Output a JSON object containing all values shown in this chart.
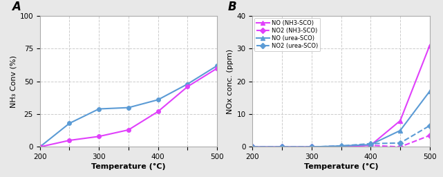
{
  "panel_A": {
    "label": "A",
    "urea_SCO": {
      "x": [
        200,
        250,
        300,
        350,
        400,
        450,
        500
      ],
      "y": [
        0,
        18,
        29,
        30,
        36,
        48,
        62
      ],
      "color": "#5b9bd5",
      "marker": "o",
      "markersize": 4,
      "label": "urea-SCO"
    },
    "NH3_SCO": {
      "x": [
        200,
        250,
        300,
        350,
        400,
        450,
        500
      ],
      "y": [
        0,
        5,
        8,
        13,
        27,
        46,
        60
      ],
      "color": "#e040fb",
      "marker": "o",
      "markersize": 4,
      "label": "NH3-SCO"
    },
    "xlabel": "Temperature (°C)",
    "ylabel": "NH₃ Conv (%)",
    "xlim": [
      200,
      500
    ],
    "ylim": [
      0,
      100
    ],
    "yticks": [
      0,
      25,
      50,
      75,
      100
    ],
    "xtick_labels": [
      "200",
      "",
      "300",
      "",
      "400",
      "",
      "500"
    ]
  },
  "panel_B": {
    "label": "B",
    "NO_NH3": {
      "x": [
        200,
        250,
        300,
        350,
        400,
        450,
        500
      ],
      "y": [
        0,
        0,
        0,
        0,
        0.5,
        8,
        31
      ],
      "color": "#e040fb",
      "marker": "^",
      "markersize": 5,
      "linestyle": "-",
      "label": "NO (NH3-SCO)"
    },
    "NO2_NH3": {
      "x": [
        200,
        250,
        300,
        350,
        400,
        450,
        500
      ],
      "y": [
        0,
        0,
        0,
        0.2,
        0.5,
        0.0,
        3.5
      ],
      "color": "#e040fb",
      "marker": "D",
      "markersize": 4,
      "linestyle": "--",
      "label": "NO2 (NH3-SCO)"
    },
    "NO_urea": {
      "x": [
        200,
        250,
        300,
        350,
        400,
        450,
        500
      ],
      "y": [
        0,
        0,
        0,
        0.3,
        0.7,
        5,
        17
      ],
      "color": "#5b9bd5",
      "marker": "^",
      "markersize": 5,
      "linestyle": "-",
      "label": "NO (urea-SCO)"
    },
    "NO2_urea": {
      "x": [
        200,
        250,
        300,
        350,
        400,
        450,
        500
      ],
      "y": [
        0,
        0,
        0,
        0.3,
        1,
        1.2,
        6.5
      ],
      "color": "#5b9bd5",
      "marker": "D",
      "markersize": 4,
      "linestyle": "--",
      "label": "NO2 (urea-SCO)"
    },
    "xlabel": "Temperature (°C)",
    "ylabel": "NOx conc. (ppm)",
    "xlim": [
      200,
      500
    ],
    "ylim": [
      0,
      40
    ],
    "yticks": [
      0,
      10,
      20,
      30,
      40
    ],
    "xtick_labels": [
      "200",
      "",
      "300",
      "",
      "400",
      "",
      "500"
    ]
  },
  "fig_bg_color": "#ffffff",
  "outer_bg_color": "#e8e8e8",
  "plot_bg_color": "#ffffff",
  "grid_color": "#cccccc",
  "border_color": "#aaaaaa",
  "label_fontsize": 8,
  "tick_fontsize": 7.5,
  "linewidth": 1.5,
  "xticks": [
    200,
    250,
    300,
    350,
    400,
    450,
    500
  ]
}
